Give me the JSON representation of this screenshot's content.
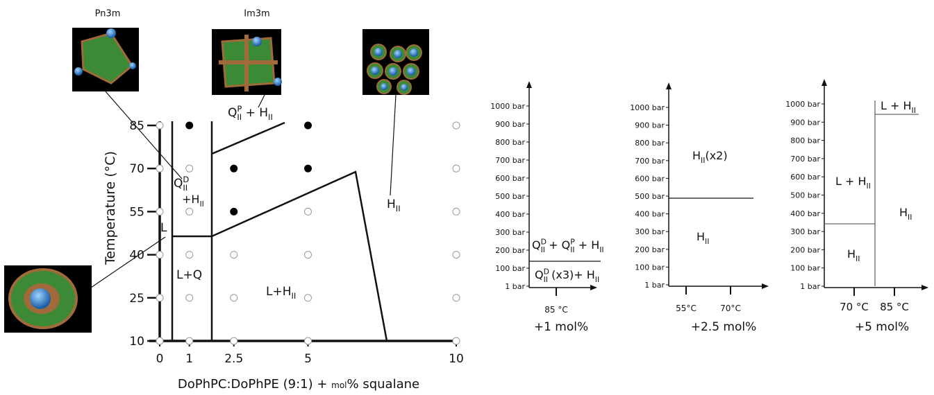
{
  "structure_labels": [
    "Pn3m",
    "Im3m"
  ],
  "phase_diagram": {
    "xlabel": [
      "DoPhPC:DoPhPE (9:1) + ",
      "mol",
      "% squalane"
    ],
    "ylabel": "Temperature (°C)",
    "xticks": [
      0,
      1,
      2.5,
      5,
      10
    ],
    "yticks": [
      10,
      25,
      40,
      55,
      70,
      85
    ],
    "points": [
      [
        0,
        10,
        false
      ],
      [
        0,
        25,
        false
      ],
      [
        0,
        40,
        false
      ],
      [
        0,
        55,
        false
      ],
      [
        0,
        70,
        false
      ],
      [
        0,
        85,
        false
      ],
      [
        1,
        10,
        false
      ],
      [
        1,
        25,
        false
      ],
      [
        1,
        40,
        false
      ],
      [
        1,
        55,
        false
      ],
      [
        1,
        70,
        false
      ],
      [
        1,
        85,
        true
      ],
      [
        2.5,
        10,
        false
      ],
      [
        2.5,
        25,
        false
      ],
      [
        2.5,
        40,
        false
      ],
      [
        2.5,
        55,
        true
      ],
      [
        2.5,
        70,
        true
      ],
      [
        5,
        10,
        false
      ],
      [
        5,
        25,
        false
      ],
      [
        5,
        40,
        false
      ],
      [
        5,
        55,
        false
      ],
      [
        5,
        70,
        true
      ],
      [
        5,
        85,
        true
      ],
      [
        10,
        10,
        false
      ],
      [
        10,
        25,
        false
      ],
      [
        10,
        40,
        false
      ],
      [
        10,
        55,
        false
      ],
      [
        10,
        70,
        false
      ],
      [
        10,
        85,
        false
      ]
    ],
    "regions": [
      [
        {
          "text": "Q"
        },
        {
          "sup": "D",
          "sub": "II"
        }
      ],
      [
        {
          "text": "+H"
        },
        {
          "sub": "II"
        }
      ],
      [
        {
          "text": "Q"
        },
        {
          "sup": "P",
          "sub": "II"
        },
        {
          "text": " + H"
        },
        {
          "sub": "II"
        }
      ],
      [
        {
          "text": "L"
        }
      ],
      [
        {
          "text": "L+Q"
        }
      ],
      [
        {
          "text": "L+H"
        },
        {
          "sub": "II"
        }
      ],
      [
        {
          "text": "H"
        },
        {
          "sub": "II"
        }
      ]
    ]
  },
  "pressure_panels": [
    {
      "yticks": [
        "1 bar",
        "100 bar",
        "200 bar",
        "300 bar",
        "400 bar",
        "500 bar",
        "600 bar",
        "700 bar",
        "800 bar",
        "900 bar",
        "1000 bar"
      ],
      "xticks": [
        "85 °C"
      ],
      "caption": "+1 mol%",
      "regions": [
        [
          {
            "text": "Q"
          },
          {
            "sup": "D",
            "sub": "II"
          },
          {
            "text": " + Q"
          },
          {
            "sup": "P",
            "sub": "II"
          },
          {
            "text": " + H"
          },
          {
            "sub": "II"
          }
        ],
        [
          {
            "text": "Q"
          },
          {
            "sup": "D",
            "sub": "II"
          },
          {
            "text": " (x3)+ H"
          },
          {
            "sub": "II"
          }
        ]
      ]
    },
    {
      "yticks": [
        "1 bar",
        "100 bar",
        "200 bar",
        "300 bar",
        "400 bar",
        "500 bar",
        "600 bar",
        "700 bar",
        "800 bar",
        "900 bar",
        "1000 bar"
      ],
      "xticks": [
        "55°C",
        "70°C"
      ],
      "caption": "+2.5 mol%",
      "regions": [
        [
          {
            "text": "H"
          },
          {
            "sub": "II"
          },
          {
            "text": "(x2)"
          }
        ],
        [
          {
            "text": "H"
          },
          {
            "sub": "II"
          }
        ]
      ]
    },
    {
      "yticks": [
        "1 bar",
        "100 bar",
        "200 bar",
        "300 bar",
        "400 bar",
        "500 bar",
        "600 bar",
        "700 bar",
        "800 bar",
        "900 bar",
        "1000 bar"
      ],
      "xticks": [
        "70 °C",
        "85 °C"
      ],
      "caption": "+5 mol%",
      "regions": [
        [
          {
            "text": "L + H"
          },
          {
            "sub": "II"
          }
        ],
        [
          {
            "text": "L + H"
          },
          {
            "sub": "II"
          }
        ],
        [
          {
            "text": "H"
          },
          {
            "sub": "II"
          }
        ],
        [
          {
            "text": "H"
          },
          {
            "sub": "II"
          }
        ]
      ]
    }
  ]
}
